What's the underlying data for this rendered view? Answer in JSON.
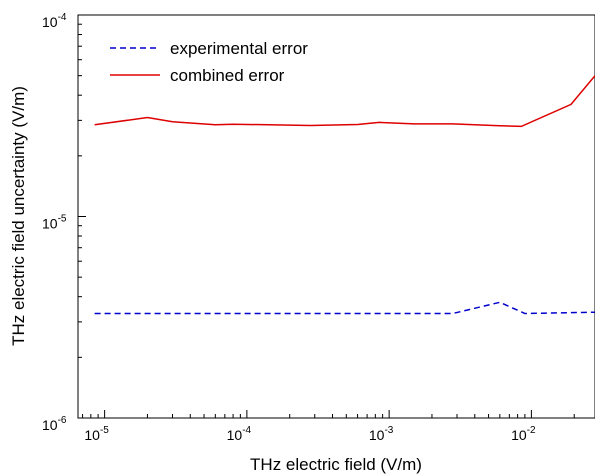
{
  "chart_data": {
    "type": "line",
    "xlabel": "THz electric field (V/m)",
    "ylabel": "THz electric field uncertainty (V/m)",
    "x_scale": "log",
    "y_scale": "log",
    "xlim": [
      6.5e-06,
      0.028
    ],
    "ylim": [
      1e-06,
      0.0001
    ],
    "x_ticks": [
      {
        "value": 1e-05,
        "base": "10",
        "exp": "-5"
      },
      {
        "value": 0.0001,
        "base": "10",
        "exp": "-4"
      },
      {
        "value": 0.001,
        "base": "10",
        "exp": "-3"
      },
      {
        "value": 0.01,
        "base": "10",
        "exp": "-2"
      }
    ],
    "y_ticks": [
      {
        "value": 1e-06,
        "base": "10",
        "exp": "-6"
      },
      {
        "value": 1e-05,
        "base": "10",
        "exp": "-5"
      },
      {
        "value": 0.0001,
        "base": "10",
        "exp": "-4"
      }
    ],
    "grid": false,
    "legend_position": "top-left",
    "series": [
      {
        "name": "experimental error",
        "color": "#0000cc",
        "dash": "dashed",
        "x": [
          8.5e-06,
          2e-05,
          6e-05,
          0.0002,
          0.0006,
          0.0015,
          0.0028,
          0.006,
          0.009,
          0.028
        ],
        "y": [
          3.3e-06,
          3.3e-06,
          3.3e-06,
          3.3e-06,
          3.3e-06,
          3.3e-06,
          3.3e-06,
          3.75e-06,
          3.3e-06,
          3.35e-06
        ]
      },
      {
        "name": "combined error",
        "color": "#dd0000",
        "dash": "solid",
        "x": [
          8.5e-06,
          2e-05,
          3e-05,
          6e-05,
          8e-05,
          0.00028,
          0.0006,
          0.00085,
          0.0015,
          0.0028,
          0.006,
          0.0085,
          0.019,
          0.028
        ],
        "y": [
          2.85e-05,
          3.1e-05,
          2.95e-05,
          2.85e-05,
          2.87e-05,
          2.83e-05,
          2.86e-05,
          2.93e-05,
          2.88e-05,
          2.88e-05,
          2.82e-05,
          2.8e-05,
          3.6e-05,
          5e-05
        ]
      }
    ]
  }
}
